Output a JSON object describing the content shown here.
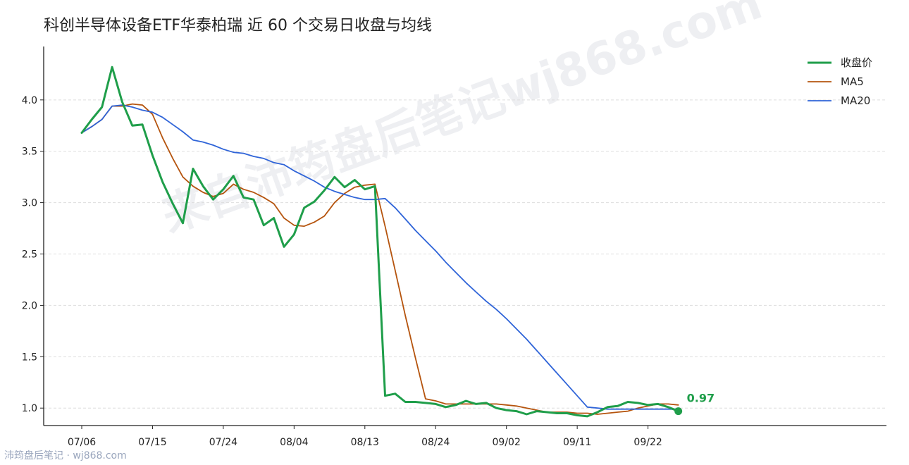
{
  "title": "科创半导体设备ETF华泰柏瑞 近 60 个交易日收盘与均线",
  "footer": "沛筠盘后笔记 · wj868.com",
  "watermark": "来自沛筠盘后笔记wj868.com",
  "chart_data": {
    "type": "line",
    "title": "科创半导体设备ETF华泰柏瑞 近 60 个交易日收盘与均线",
    "xlabel": "",
    "ylabel": "",
    "ylim": [
      0.83,
      4.52
    ],
    "yticks": [
      "1.0",
      "1.5",
      "2.0",
      "2.5",
      "3.0",
      "3.5",
      "4.0"
    ],
    "xtick_labels": [
      {
        "index": 0,
        "label": "07/06"
      },
      {
        "index": 7,
        "label": "07/15"
      },
      {
        "index": 14,
        "label": "07/24"
      },
      {
        "index": 21,
        "label": "08/04"
      },
      {
        "index": 28,
        "label": "08/13"
      },
      {
        "index": 35,
        "label": "08/24"
      },
      {
        "index": 42,
        "label": "09/02"
      },
      {
        "index": 49,
        "label": "09/11"
      },
      {
        "index": 56,
        "label": "09/22"
      }
    ],
    "grid": "horizontal-dashed",
    "legend_position": "top-right",
    "series": [
      {
        "name": "收盘价",
        "color": "#1f9e4a",
        "values": [
          3.68,
          3.81,
          3.93,
          4.32,
          3.98,
          3.75,
          3.76,
          3.46,
          3.2,
          2.99,
          2.8,
          3.33,
          3.16,
          3.03,
          3.13,
          3.26,
          3.05,
          3.03,
          2.78,
          2.85,
          2.57,
          2.69,
          2.95,
          3.01,
          3.12,
          3.25,
          3.15,
          3.22,
          3.13,
          3.16,
          1.12,
          1.14,
          1.06,
          1.06,
          1.05,
          1.04,
          1.01,
          1.03,
          1.07,
          1.04,
          1.05,
          1.0,
          0.98,
          0.97,
          0.94,
          0.97,
          0.96,
          0.95,
          0.95,
          0.93,
          0.92,
          0.96,
          1.01,
          1.02,
          1.06,
          1.05,
          1.03,
          1.04,
          1.01,
          0.97
        ]
      },
      {
        "name": "MA5",
        "color": "#b5540e",
        "values": [
          3.68,
          3.74,
          3.81,
          3.94,
          3.94,
          3.96,
          3.95,
          3.86,
          3.63,
          3.43,
          3.25,
          3.16,
          3.1,
          3.06,
          3.09,
          3.18,
          3.13,
          3.1,
          3.05,
          2.99,
          2.85,
          2.78,
          2.77,
          2.81,
          2.87,
          3.0,
          3.09,
          3.15,
          3.17,
          3.18,
          2.77,
          2.34,
          1.9,
          1.49,
          1.09,
          1.07,
          1.04,
          1.04,
          1.04,
          1.04,
          1.04,
          1.04,
          1.03,
          1.02,
          1.0,
          0.98,
          0.96,
          0.96,
          0.96,
          0.95,
          0.95,
          0.94,
          0.95,
          0.96,
          0.97,
          1.0,
          1.02,
          1.04,
          1.04,
          1.03
        ]
      },
      {
        "name": "MA20",
        "color": "#2f64d8",
        "values": [
          3.68,
          3.74,
          3.81,
          3.94,
          3.95,
          3.93,
          3.9,
          3.88,
          3.83,
          3.76,
          3.69,
          3.61,
          3.59,
          3.56,
          3.52,
          3.49,
          3.48,
          3.45,
          3.43,
          3.39,
          3.37,
          3.31,
          3.26,
          3.21,
          3.15,
          3.11,
          3.08,
          3.05,
          3.03,
          3.03,
          3.04,
          2.95,
          2.84,
          2.73,
          2.63,
          2.53,
          2.42,
          2.32,
          2.22,
          2.13,
          2.04,
          1.96,
          1.87,
          1.77,
          1.67,
          1.56,
          1.45,
          1.34,
          1.23,
          1.12,
          1.01,
          1.0,
          0.99,
          0.99,
          0.99,
          0.99,
          0.99,
          0.99,
          0.99,
          0.99
        ]
      }
    ],
    "last_value_label": "0.97"
  }
}
